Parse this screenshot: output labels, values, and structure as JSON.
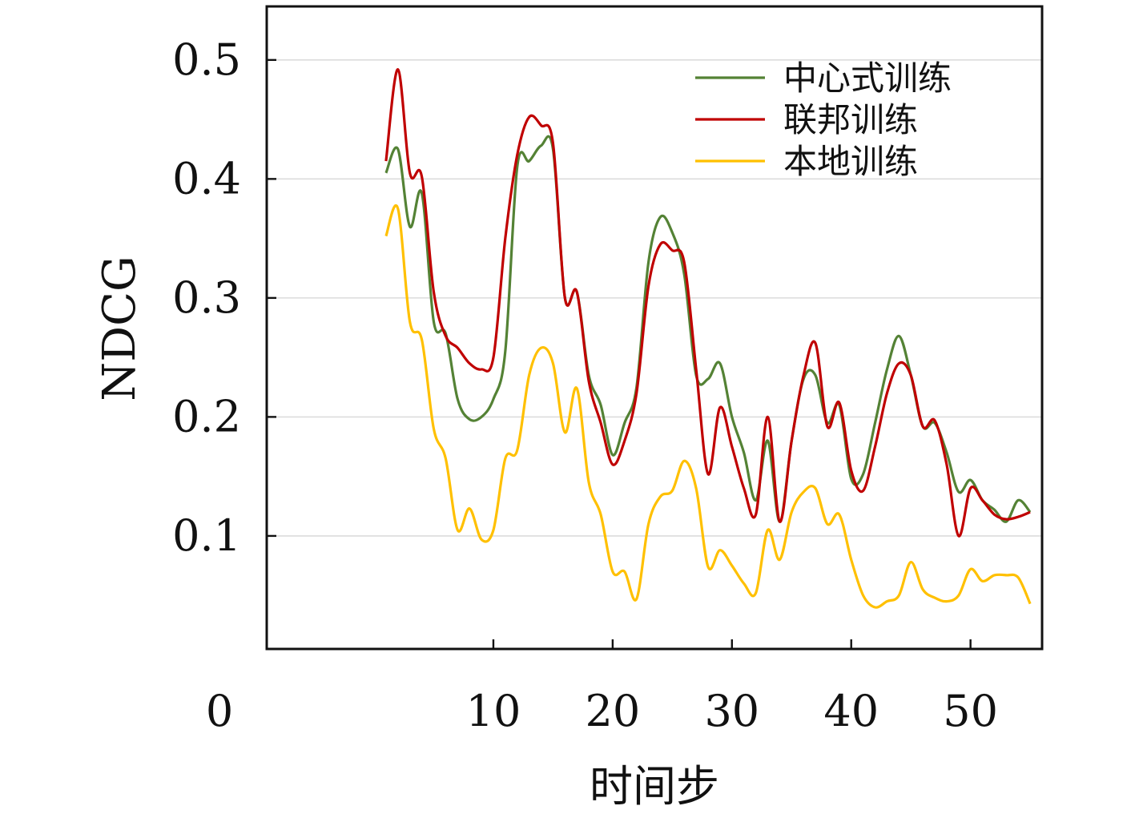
{
  "chart_data": {
    "type": "line",
    "xlabel": "时间步",
    "ylabel": "NDCG",
    "xlim": [
      -9,
      56
    ],
    "ylim": [
      0.005,
      0.545
    ],
    "xticks": [
      0,
      10,
      20,
      30,
      40,
      50
    ],
    "yticks": [
      0.1,
      0.2,
      0.3,
      0.4,
      0.5
    ],
    "grid": "horizontal",
    "legend": "top-right",
    "x": [
      1,
      2,
      3,
      4,
      5,
      6,
      7,
      8,
      9,
      10,
      11,
      12,
      13,
      14,
      15,
      16,
      17,
      18,
      19,
      20,
      21,
      22,
      23,
      24,
      25,
      26,
      27,
      28,
      29,
      30,
      31,
      32,
      33,
      34,
      35,
      36,
      37,
      38,
      39,
      40,
      41,
      42,
      43,
      44,
      45,
      46,
      47,
      48,
      49,
      50,
      51,
      52,
      53,
      54,
      55
    ],
    "series": [
      {
        "name": "中心式训练",
        "color": "#548235",
        "values": [
          0.405,
          0.425,
          0.36,
          0.388,
          0.28,
          0.27,
          0.215,
          0.198,
          0.2,
          0.215,
          0.255,
          0.41,
          0.415,
          0.428,
          0.425,
          0.3,
          0.305,
          0.235,
          0.21,
          0.168,
          0.195,
          0.225,
          0.33,
          0.368,
          0.355,
          0.32,
          0.235,
          0.232,
          0.245,
          0.2,
          0.17,
          0.13,
          0.18,
          0.112,
          0.18,
          0.232,
          0.235,
          0.195,
          0.21,
          0.148,
          0.152,
          0.195,
          0.24,
          0.268,
          0.235,
          0.192,
          0.195,
          0.17,
          0.137,
          0.147,
          0.13,
          0.122,
          0.112,
          0.13,
          0.12
        ]
      },
      {
        "name": "联邦训练",
        "color": "#c00000",
        "values": [
          0.415,
          0.492,
          0.405,
          0.402,
          0.305,
          0.268,
          0.258,
          0.245,
          0.24,
          0.25,
          0.35,
          0.42,
          0.452,
          0.445,
          0.43,
          0.3,
          0.305,
          0.23,
          0.195,
          0.16,
          0.18,
          0.22,
          0.31,
          0.345,
          0.34,
          0.33,
          0.24,
          0.152,
          0.208,
          0.175,
          0.14,
          0.118,
          0.2,
          0.112,
          0.18,
          0.235,
          0.262,
          0.192,
          0.212,
          0.155,
          0.138,
          0.175,
          0.22,
          0.245,
          0.235,
          0.192,
          0.197,
          0.16,
          0.1,
          0.14,
          0.13,
          0.118,
          0.114,
          0.116,
          0.12
        ]
      },
      {
        "name": "本地训练",
        "color": "#ffc000",
        "values": [
          0.352,
          0.375,
          0.28,
          0.265,
          0.19,
          0.165,
          0.105,
          0.123,
          0.097,
          0.105,
          0.165,
          0.172,
          0.235,
          0.258,
          0.245,
          0.187,
          0.224,
          0.145,
          0.118,
          0.07,
          0.07,
          0.047,
          0.11,
          0.133,
          0.138,
          0.163,
          0.14,
          0.074,
          0.088,
          0.075,
          0.06,
          0.052,
          0.105,
          0.08,
          0.12,
          0.137,
          0.14,
          0.11,
          0.118,
          0.08,
          0.05,
          0.04,
          0.045,
          0.05,
          0.078,
          0.055,
          0.048,
          0.045,
          0.05,
          0.072,
          0.062,
          0.067,
          0.067,
          0.065,
          0.043
        ]
      }
    ]
  }
}
